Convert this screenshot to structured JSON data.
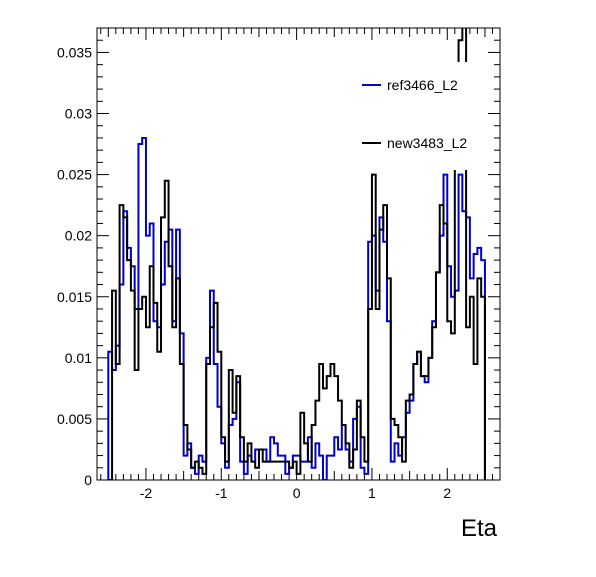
{
  "chart_data": {
    "type": "histogram-step",
    "xlabel": "Eta",
    "ylabel": "",
    "xlim": [
      -2.65,
      2.7
    ],
    "ylim": [
      0,
      0.037
    ],
    "x_ticks": [
      -2,
      -1,
      0,
      1,
      2
    ],
    "x_tick_labels": [
      "-2",
      "-1",
      "0",
      "1",
      "2"
    ],
    "y_ticks": [
      0,
      0.005,
      0.01,
      0.015,
      0.02,
      0.025,
      0.03,
      0.035
    ],
    "y_tick_labels": [
      "0",
      "0.005",
      "0.01",
      "0.015",
      "0.02",
      "0.025",
      "0.03",
      "0.035"
    ],
    "bin_start": -2.5,
    "bin_width": 0.05,
    "legend_placement": "top-right",
    "series": [
      {
        "name": "ref3466_L2",
        "color": "#0000cc",
        "values": [
          0.0105,
          0.009,
          0.011,
          0.016,
          0.022,
          0.019,
          0.0175,
          0.014,
          0.0275,
          0.028,
          0.02,
          0.021,
          0.013,
          0.0125,
          0.016,
          0.0195,
          0.0205,
          0.013,
          0.0205,
          0.012,
          0.002,
          0.003,
          0.001,
          0.0005,
          0.002,
          0.0015,
          0.01,
          0.0155,
          0.0095,
          0.006,
          0.003,
          0.001,
          0.0045,
          0.005,
          0.008,
          0.0015,
          0.0005,
          0.002,
          0.0015,
          0.0025,
          0.0025,
          0.0025,
          0.0015,
          0.0035,
          0.003,
          0.002,
          0.002,
          0.0005,
          0.001,
          0.002,
          0.002,
          0.0015,
          0.0015,
          0.0035,
          0.001,
          0.003,
          0.002,
          0.0,
          0.002,
          0.002,
          0.0035,
          0.0025,
          0.0045,
          0.0025,
          0.0015,
          0.005,
          0.006,
          0.001,
          0.0005,
          0.0195,
          0.02,
          0.0155,
          0.0215,
          0.0195,
          0.013,
          0.0015,
          0.003,
          0.002,
          0.0035,
          0.0055,
          0.0065,
          0.0095,
          0.0105,
          0.0085,
          0.008,
          0.01,
          0.013,
          0.017,
          0.02,
          0.025,
          0.0175,
          0.015,
          0.0155,
          0.025,
          0.022,
          0.0215,
          0.0165,
          0.0185,
          0.019,
          0.018
        ]
      },
      {
        "name": "new3483_L2",
        "color": "#000000",
        "values": [
          0.0,
          0.0155,
          0.0095,
          0.0225,
          0.0215,
          0.018,
          0.0155,
          0.009,
          0.014,
          0.015,
          0.0125,
          0.0175,
          0.0145,
          0.0105,
          0.0215,
          0.0245,
          0.0175,
          0.0125,
          0.0165,
          0.0095,
          0.0045,
          0.0025,
          0.001,
          0.0015,
          0.001,
          0.0005,
          0.0095,
          0.0125,
          0.0145,
          0.0105,
          0.0035,
          0.0015,
          0.009,
          0.0055,
          0.0085,
          0.0035,
          0.0015,
          0.003,
          0.0015,
          0.001,
          0.0025,
          0.0015,
          0.0015,
          0.0015,
          0.0015,
          0.0015,
          0.0015,
          0.0015,
          0.001,
          0.0015,
          0.0005,
          0.0055,
          0.003,
          0.0015,
          0.0045,
          0.0065,
          0.0095,
          0.0075,
          0.0085,
          0.0095,
          0.0085,
          0.0065,
          0.0045,
          0.003,
          0.001,
          0.0025,
          0.0065,
          0.0035,
          0.0015,
          0.014,
          0.025,
          0.014,
          0.0205,
          0.0225,
          0.0165,
          0.005,
          0.0045,
          0.0035,
          0.0015,
          0.0065,
          0.007,
          0.0095,
          0.0105,
          0.0085,
          0.0085,
          0.01,
          0.0125,
          0.017,
          0.0225,
          0.021,
          0.013,
          0.012,
          0.026,
          0.036,
          0.038,
          0.0125,
          0.015,
          0.0095,
          0.0165,
          0.015
        ]
      }
    ]
  }
}
